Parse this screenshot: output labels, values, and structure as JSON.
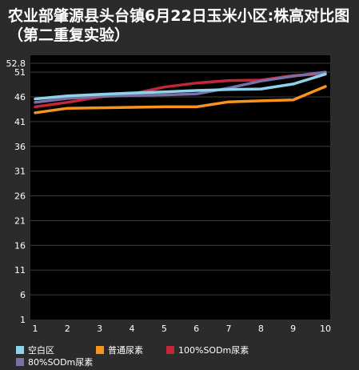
{
  "chart_data": {
    "type": "line",
    "title": "农业部肇源县头台镇6月22日玉米小区:株高对比图（第二重复实验）",
    "x": [
      1,
      2,
      3,
      4,
      5,
      6,
      7,
      8,
      9,
      10
    ],
    "xlabel": "",
    "ylabel": "",
    "ylim": [
      1,
      52.8
    ],
    "yticks": [
      1,
      6,
      11,
      16,
      21,
      26,
      31,
      36,
      41,
      46,
      51,
      52.8
    ],
    "grid": true,
    "legend_position": "bottom",
    "series": [
      {
        "name": "空白区",
        "color": "#8ed3ea",
        "values": [
          45.6,
          46.2,
          46.5,
          46.8,
          47.0,
          47.3,
          47.5,
          47.6,
          48.6,
          50.6
        ]
      },
      {
        "name": "普通尿素",
        "color": "#f7931e",
        "values": [
          42.8,
          43.7,
          43.8,
          43.9,
          44.0,
          44.0,
          45.0,
          45.2,
          45.4,
          48.1
        ]
      },
      {
        "name": "100%SODm尿素",
        "color": "#c0283a",
        "values": [
          44.0,
          44.9,
          46.0,
          46.6,
          48.0,
          48.8,
          49.3,
          49.4,
          50.3,
          50.7
        ]
      },
      {
        "name": "80%SODm尿素",
        "color": "#7b6fa6",
        "values": [
          44.9,
          45.7,
          46.1,
          46.3,
          46.4,
          46.6,
          47.8,
          49.2,
          50.2,
          51.0
        ]
      }
    ]
  }
}
